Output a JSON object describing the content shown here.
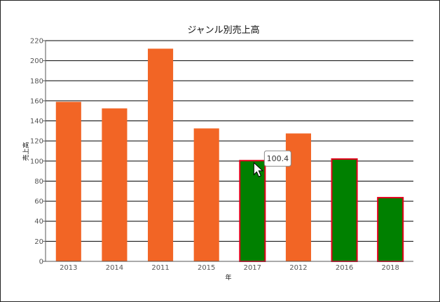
{
  "chart_data": {
    "type": "bar",
    "title": "ジャンル別売上高",
    "xlabel": "年",
    "ylabel": "売上高",
    "ylim": [
      0,
      220
    ],
    "yticks": [
      0,
      20,
      40,
      60,
      80,
      100,
      120,
      140,
      160,
      180,
      200,
      220
    ],
    "categories": [
      "2013",
      "2014",
      "2011",
      "2015",
      "2017",
      "2012",
      "2016",
      "2018"
    ],
    "values": [
      159,
      152.5,
      212,
      132.5,
      100.4,
      127.5,
      102,
      63.5
    ],
    "highlighted": [
      false,
      false,
      false,
      false,
      true,
      false,
      true,
      true
    ],
    "grid": true,
    "legend": "none",
    "colors": {
      "bar": "#f26525",
      "bar_highlight": "#008000",
      "highlight_border": "#e3001b",
      "grid": "#000000"
    },
    "tooltip": {
      "category": "2017",
      "text": "100.4"
    }
  }
}
